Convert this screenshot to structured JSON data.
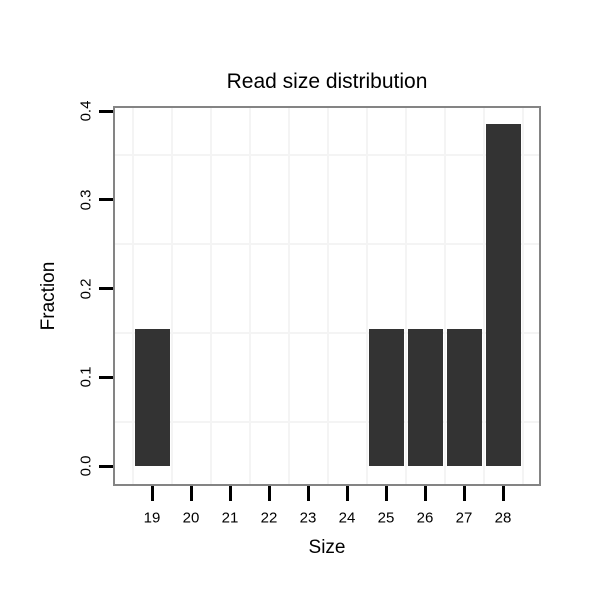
{
  "chart_data": {
    "type": "bar",
    "title": "Read size distribution",
    "xlabel": "Size",
    "ylabel": "Fraction",
    "categories": [
      19,
      20,
      21,
      22,
      23,
      24,
      25,
      26,
      27,
      28
    ],
    "x_tick_labels": [
      "19",
      "20",
      "21",
      "22",
      "23",
      "24",
      "25",
      "26",
      "27",
      "28"
    ],
    "values": [
      0.154,
      0,
      0,
      0,
      0,
      0,
      0.154,
      0.154,
      0.154,
      0.385
    ],
    "y_ticks": [
      0.0,
      0.1,
      0.2,
      0.3,
      0.4
    ],
    "y_tick_labels": [
      "0.0",
      "0.1",
      "0.2",
      "0.3",
      "0.4"
    ],
    "ylim": [
      0,
      0.405
    ],
    "grid": "faint lines midway between ticks, both axes",
    "legend": "none",
    "colors": {
      "bar_fill": "#333333",
      "panel_border": "#848484",
      "grid_line": "#f4f4f4",
      "tick": "#000000",
      "text": "#000000",
      "background": "#ffffff"
    }
  }
}
